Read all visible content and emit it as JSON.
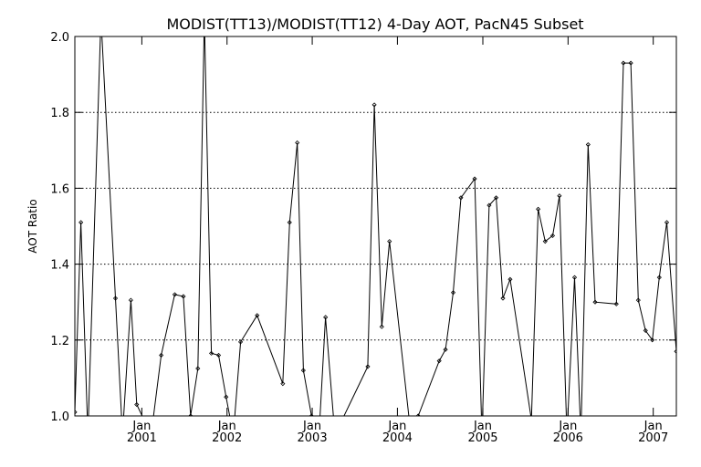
{
  "chart_data": {
    "type": "line",
    "title": "MODIST(TT13)/MODIST(TT12) 4-Day AOT, PacN45 Subset",
    "ylabel": "AOT Ratio",
    "xlabel": "",
    "xlim": [
      "2000-03-20",
      "2007-04-10"
    ],
    "ylim": [
      1.0,
      2.0
    ],
    "y_ticks": [
      "1.0",
      "1.2",
      "1.4",
      "1.6",
      "1.8",
      "2.0"
    ],
    "x_ticks": [
      {
        "month": "Jan",
        "year": "2001",
        "date": "2001-01-01"
      },
      {
        "month": "Jan",
        "year": "2002",
        "date": "2002-01-01"
      },
      {
        "month": "Jan",
        "year": "2003",
        "date": "2003-01-01"
      },
      {
        "month": "Jan",
        "year": "2004",
        "date": "2004-01-01"
      },
      {
        "month": "Jan",
        "year": "2005",
        "date": "2005-01-01"
      },
      {
        "month": "Jan",
        "year": "2006",
        "date": "2006-01-01"
      },
      {
        "month": "Jan",
        "year": "2007",
        "date": "2007-01-01"
      }
    ],
    "grid": "horizontal-dotted",
    "x": [
      "2000-03-20",
      "2000-04-15",
      "2000-05-15",
      "2000-07-10",
      "2000-09-10",
      "2000-10-10",
      "2000-11-15",
      "2000-12-10",
      "2001-02-10",
      "2001-03-25",
      "2001-05-22",
      "2001-06-28",
      "2001-07-29",
      "2001-08-29",
      "2001-09-26",
      "2001-10-26",
      "2001-11-26",
      "2001-12-28",
      "2002-01-28",
      "2002-02-28",
      "2002-05-10",
      "2002-08-28",
      "2002-09-26",
      "2002-10-29",
      "2002-11-24",
      "2002-12-29",
      "2003-01-30",
      "2003-02-27",
      "2003-04-08",
      "2003-08-27",
      "2003-09-24",
      "2003-10-26",
      "2003-11-28",
      "2004-02-28",
      "2004-03-30",
      "2004-06-28",
      "2004-07-25",
      "2004-08-27",
      "2004-09-29",
      "2004-11-27",
      "2004-12-28",
      "2005-01-28",
      "2005-02-27",
      "2005-03-28",
      "2005-04-28",
      "2005-07-28",
      "2005-08-26",
      "2005-09-25",
      "2005-10-27",
      "2005-11-25",
      "2005-12-27",
      "2006-01-29",
      "2006-02-25",
      "2006-03-28",
      "2006-04-27",
      "2006-07-27",
      "2006-08-26",
      "2006-09-27",
      "2006-10-29",
      "2006-11-29",
      "2006-12-28",
      "2007-01-27",
      "2007-02-28",
      "2007-04-10"
    ],
    "values": [
      1.01,
      1.51,
      0.95,
      2.05,
      1.31,
      0.95,
      1.305,
      1.03,
      0.95,
      1.16,
      1.32,
      1.315,
      1.0,
      1.125,
      2.05,
      1.165,
      1.16,
      1.05,
      0.95,
      1.195,
      1.265,
      1.085,
      1.51,
      1.72,
      1.12,
      1.0,
      0.95,
      1.26,
      0.95,
      1.13,
      1.82,
      1.235,
      1.46,
      0.95,
      1.0,
      1.145,
      1.175,
      1.325,
      1.575,
      1.625,
      0.95,
      1.555,
      1.575,
      1.31,
      1.36,
      0.99,
      1.545,
      1.46,
      1.475,
      1.58,
      0.95,
      1.365,
      0.95,
      1.715,
      1.3,
      1.295,
      1.93,
      1.93,
      1.305,
      1.225,
      1.2,
      1.365,
      1.51,
      1.17
    ]
  }
}
